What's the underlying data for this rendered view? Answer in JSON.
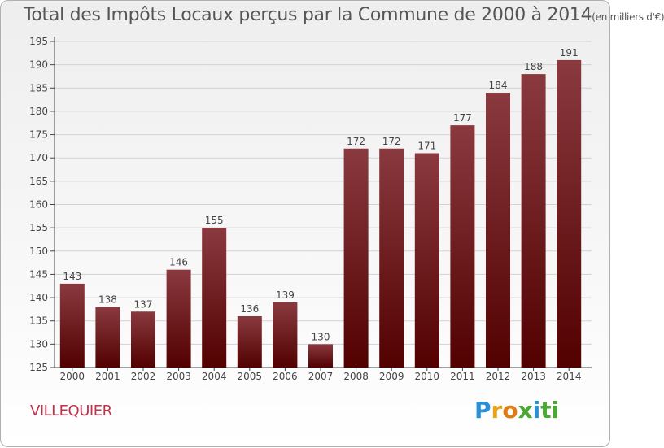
{
  "header": {
    "title": "Total des Impôts Locaux perçus par la Commune de 2000 à 2014",
    "unit": "(en milliers d'€)"
  },
  "footer": {
    "commune": "VILLEQUIER",
    "logo_letters": [
      "P",
      "r",
      "o",
      "x",
      "i",
      "ti"
    ]
  },
  "colors": {
    "bar_top": "#8a3a3f",
    "bar_bottom": "#520000",
    "commune": "#c0314a"
  },
  "chart_data": {
    "type": "bar",
    "title": "Total des Impôts Locaux perçus par la Commune de 2000 à 2014 (en milliers d'€)",
    "xlabel": "",
    "ylabel": "",
    "categories": [
      "2000",
      "2001",
      "2002",
      "2003",
      "2004",
      "2005",
      "2006",
      "2007",
      "2008",
      "2009",
      "2010",
      "2011",
      "2012",
      "2013",
      "2014"
    ],
    "values": [
      143,
      138,
      137,
      146,
      155,
      136,
      139,
      130,
      172,
      172,
      171,
      177,
      184,
      188,
      191
    ],
    "ylim": [
      125,
      195
    ],
    "yticks": [
      125,
      130,
      135,
      140,
      145,
      150,
      155,
      160,
      165,
      170,
      175,
      180,
      185,
      190,
      195
    ],
    "grid": true
  }
}
